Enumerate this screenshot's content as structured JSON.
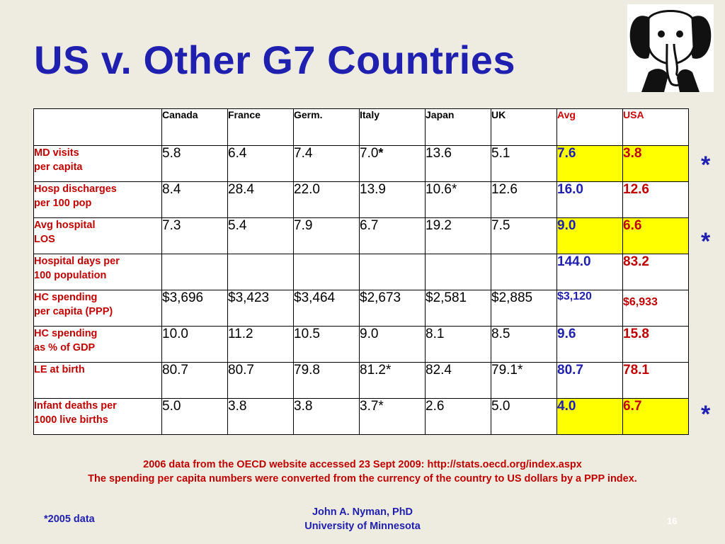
{
  "title": "US v. Other G7 Countries",
  "table": {
    "headers": [
      "Canada",
      "France",
      "Germ.",
      "Italy",
      "Japan",
      "UK",
      "Avg",
      "USA"
    ],
    "rows": [
      {
        "label1": "MD visits",
        "label2": "per capita",
        "values": [
          "5.8",
          "6.4",
          "7.4",
          "7.0"
        ],
        "italy_mark": "*",
        "rest": [
          "13.6",
          "5.1"
        ],
        "avg": "7.6",
        "usa": "3.8"
      },
      {
        "label1": "Hosp discharges",
        "label2": "per 100 pop",
        "values": [
          "8.4",
          "28.4",
          "22.0",
          "13.9",
          "10.6*",
          "12.6"
        ],
        "avg": "16.0",
        "usa": "12.6"
      },
      {
        "label1": "Avg hospital",
        "label2": "LOS",
        "values": [
          "7.3",
          "5.4",
          "7.9",
          "6.7",
          "19.2",
          "7.5"
        ],
        "avg": "9.0",
        "usa": "6.6"
      },
      {
        "label1": "Hospital days per",
        "label2": "100 population",
        "values": [
          "",
          "",
          "",
          "",
          "",
          ""
        ],
        "avg": "144.0",
        "usa": "83.2"
      },
      {
        "label1": "HC spending",
        "label2": "per capita  (PPP)",
        "values": [
          "$3,696",
          "$3,423",
          "$3,464",
          "$2,673",
          "$2,581",
          "$2,885"
        ],
        "avg": "$3,120",
        "usa": "$6,933"
      },
      {
        "label1": "HC spending",
        "label2": "as % of GDP",
        "values": [
          "10.0",
          "11.2",
          "10.5",
          "9.0",
          "8.1",
          "8.5"
        ],
        "avg": "9.6",
        "usa": "15.8"
      },
      {
        "label1": "LE at birth",
        "label2": "",
        "values": [
          "80.7",
          "80.7",
          "79.8",
          "81.2*",
          "82.4",
          "79.1*"
        ],
        "avg": "80.7",
        "usa": "78.1"
      },
      {
        "label1": "Infant deaths per",
        "label2": "1000 live births",
        "values": [
          "5.0",
          "3.8",
          "3.8",
          "3.7*",
          "2.6",
          "5.0"
        ],
        "avg": "4.0",
        "usa": "6.7"
      }
    ]
  },
  "side_asterisk": "*",
  "source_line1": "2006 data from the OECD website accessed 23 Sept 2009: http://stats.oecd.org/index.aspx",
  "source_line2": "The spending per capita numbers were converted from the currency of the country to US dollars by a PPP index.",
  "footnote": "*2005 data",
  "author": "John A. Nyman, PhD",
  "affiliation": "University of Minnesota",
  "slide_number": "16",
  "colors": {
    "title": "#1f1fb0",
    "label": "#c00000",
    "highlight": "#ffff00",
    "background": "#eeece1"
  }
}
